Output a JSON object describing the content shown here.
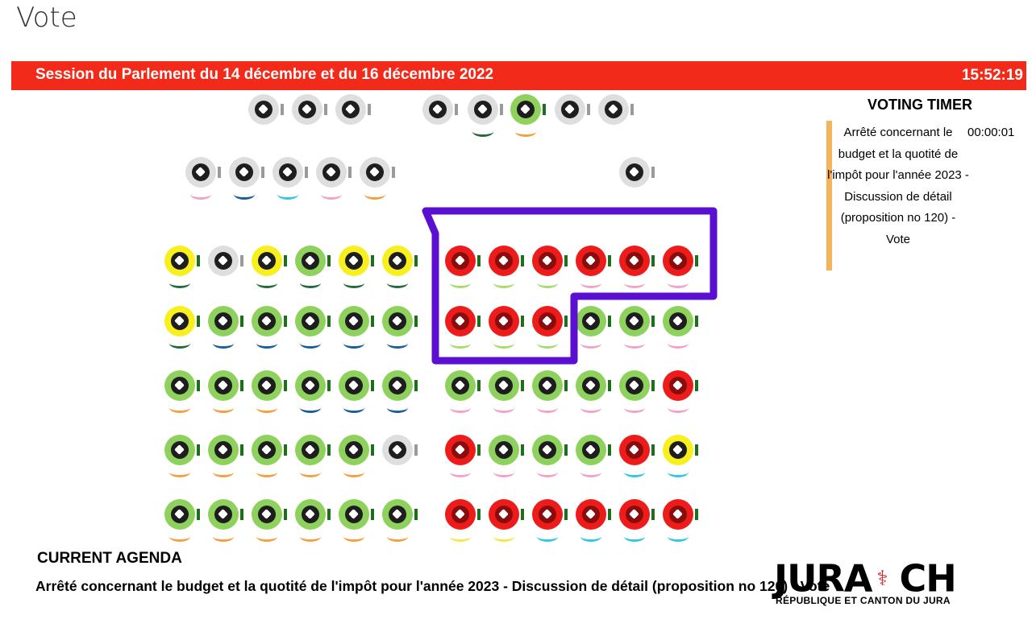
{
  "page": {
    "title": "Vote"
  },
  "session": {
    "title": "Session du Parlement du 14 décembre et du 16 décembre 2022",
    "time": "15:52:19"
  },
  "timer": {
    "heading": "VOTING TIMER",
    "item": "Arrêté concernant le budget et la quotité de l'impôt pour l'année 2023 - Discussion de détail (proposition no 120) - Vote",
    "value": "00:00:01"
  },
  "agenda": {
    "heading": "CURRENT AGENDA",
    "text": "Arrêté concernant le budget et la quotité de l'impôt pour l'année 2023 - Discussion de détail (proposition no 120) - Vote"
  },
  "logo": {
    "name": "JURA",
    "suffix": "CH",
    "subtitle": "RÉPUBLIQUE ET CANTON DU JURA"
  },
  "colors": {
    "vote": {
      "yes": "#8ed15d",
      "no": "#ee1b1b",
      "abstain": "#f7ef1e",
      "absent": "#dedede"
    },
    "indicator": {
      "present": "#1f6e1e",
      "absent": "#9a9a9a"
    },
    "party": {
      "pink": "#f3a3c6",
      "blue": "#1c5f96",
      "cyan": "#35c6e0",
      "orange": "#f2a040",
      "green": "#246b3c",
      "lightgreen": "#a6dd6b",
      "yellow": "#f2ea44",
      "none": "transparent"
    },
    "annotation": "#5b0fd0"
  },
  "seats": [
    [
      {
        "vote": "absent",
        "party": "none"
      },
      {
        "vote": "absent",
        "party": "none"
      },
      {
        "vote": "absent",
        "party": "none"
      },
      {
        "vote": "absent",
        "party": "none"
      },
      {
        "vote": "absent",
        "party": "green"
      },
      {
        "vote": "yes",
        "party": "orange"
      },
      {
        "vote": "absent",
        "party": "none"
      },
      {
        "vote": "absent",
        "party": "none"
      }
    ],
    [
      {
        "vote": "absent",
        "party": "pink"
      },
      {
        "vote": "absent",
        "party": "blue"
      },
      {
        "vote": "absent",
        "party": "cyan"
      },
      {
        "vote": "absent",
        "party": "pink"
      },
      {
        "vote": "absent",
        "party": "orange"
      },
      {
        "vote": "absent",
        "party": "none"
      }
    ],
    [
      {
        "vote": "abstain",
        "party": "green"
      },
      {
        "vote": "absent",
        "party": "none"
      },
      {
        "vote": "abstain",
        "party": "green"
      },
      {
        "vote": "yes",
        "party": "green"
      },
      {
        "vote": "abstain",
        "party": "green"
      },
      {
        "vote": "abstain",
        "party": "green"
      },
      {
        "vote": "no",
        "party": "lightgreen"
      },
      {
        "vote": "no",
        "party": "lightgreen"
      },
      {
        "vote": "no",
        "party": "lightgreen"
      },
      {
        "vote": "no",
        "party": "pink"
      },
      {
        "vote": "no",
        "party": "pink"
      },
      {
        "vote": "no",
        "party": "pink"
      }
    ],
    [
      {
        "vote": "abstain",
        "party": "green"
      },
      {
        "vote": "yes",
        "party": "blue"
      },
      {
        "vote": "yes",
        "party": "blue"
      },
      {
        "vote": "yes",
        "party": "blue"
      },
      {
        "vote": "yes",
        "party": "blue"
      },
      {
        "vote": "yes",
        "party": "blue"
      },
      {
        "vote": "no",
        "party": "lightgreen"
      },
      {
        "vote": "no",
        "party": "lightgreen"
      },
      {
        "vote": "no",
        "party": "lightgreen"
      },
      {
        "vote": "yes",
        "party": "pink"
      },
      {
        "vote": "yes",
        "party": "pink"
      },
      {
        "vote": "yes",
        "party": "pink"
      }
    ],
    [
      {
        "vote": "yes",
        "party": "orange"
      },
      {
        "vote": "yes",
        "party": "orange"
      },
      {
        "vote": "yes",
        "party": "orange"
      },
      {
        "vote": "yes",
        "party": "blue"
      },
      {
        "vote": "yes",
        "party": "blue"
      },
      {
        "vote": "yes",
        "party": "blue"
      },
      {
        "vote": "yes",
        "party": "pink"
      },
      {
        "vote": "yes",
        "party": "pink"
      },
      {
        "vote": "yes",
        "party": "pink"
      },
      {
        "vote": "yes",
        "party": "pink"
      },
      {
        "vote": "yes",
        "party": "pink"
      },
      {
        "vote": "no",
        "party": "pink"
      }
    ],
    [
      {
        "vote": "yes",
        "party": "orange"
      },
      {
        "vote": "yes",
        "party": "orange"
      },
      {
        "vote": "yes",
        "party": "orange"
      },
      {
        "vote": "yes",
        "party": "orange"
      },
      {
        "vote": "yes",
        "party": "orange"
      },
      {
        "vote": "absent",
        "party": "none"
      },
      {
        "vote": "no",
        "party": "pink"
      },
      {
        "vote": "yes",
        "party": "pink"
      },
      {
        "vote": "yes",
        "party": "pink"
      },
      {
        "vote": "yes",
        "party": "pink"
      },
      {
        "vote": "no",
        "party": "cyan"
      },
      {
        "vote": "abstain",
        "party": "cyan"
      }
    ],
    [
      {
        "vote": "yes",
        "party": "orange"
      },
      {
        "vote": "yes",
        "party": "orange"
      },
      {
        "vote": "yes",
        "party": "orange"
      },
      {
        "vote": "yes",
        "party": "orange"
      },
      {
        "vote": "yes",
        "party": "orange"
      },
      {
        "vote": "yes",
        "party": "orange"
      },
      {
        "vote": "no",
        "party": "yellow"
      },
      {
        "vote": "no",
        "party": "yellow"
      },
      {
        "vote": "no",
        "party": "cyan"
      },
      {
        "vote": "no",
        "party": "cyan"
      },
      {
        "vote": "no",
        "party": "cyan"
      },
      {
        "vote": "no",
        "party": "cyan"
      }
    ]
  ]
}
